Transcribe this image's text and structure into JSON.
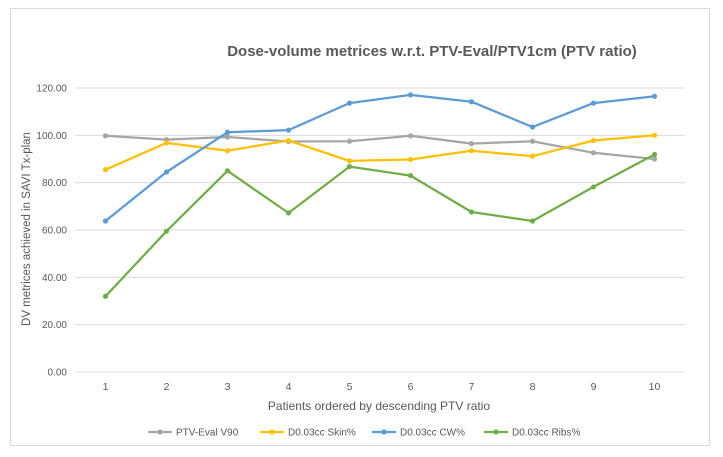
{
  "chart_data": {
    "type": "line",
    "title": "Dose-volume metrices w.r.t. PTV-Eval/PTV1cm (PTV ratio)",
    "xlabel": "Patients ordered by descending PTV ratio",
    "ylabel": "DV metrices  achieved in SAVI Tx-plan",
    "categories": [
      "1",
      "2",
      "3",
      "4",
      "5",
      "6",
      "7",
      "8",
      "9",
      "10"
    ],
    "ylim": [
      0,
      120
    ],
    "yticks": [
      "0.00",
      "20.00",
      "40.00",
      "60.00",
      "80.00",
      "100.00",
      "120.00"
    ],
    "ytick_values": [
      0,
      20,
      40,
      60,
      80,
      100,
      120
    ],
    "grid": true,
    "legend_position": "bottom",
    "series": [
      {
        "name": "PTV-Eval V90",
        "color": "#a5a5a5",
        "values": [
          99.8,
          98.2,
          99.3,
          97.4,
          97.5,
          99.8,
          96.5,
          97.5,
          92.6,
          90.0
        ]
      },
      {
        "name": "D0.03cc Skin%",
        "color": "#ffc000",
        "values": [
          85.5,
          96.8,
          93.5,
          97.8,
          89.2,
          89.8,
          93.5,
          91.2,
          97.8,
          100.0
        ]
      },
      {
        "name": "D0.03cc CW%",
        "color": "#5b9bd5",
        "values": [
          63.8,
          84.5,
          101.3,
          102.2,
          113.6,
          117.1,
          114.2,
          103.5,
          113.6,
          116.5
        ]
      },
      {
        "name": "D0.03cc Ribs%",
        "color": "#70ad47",
        "values": [
          32.0,
          59.5,
          85.0,
          67.2,
          86.8,
          83.0,
          67.6,
          63.8,
          78.2,
          91.9
        ]
      }
    ]
  }
}
